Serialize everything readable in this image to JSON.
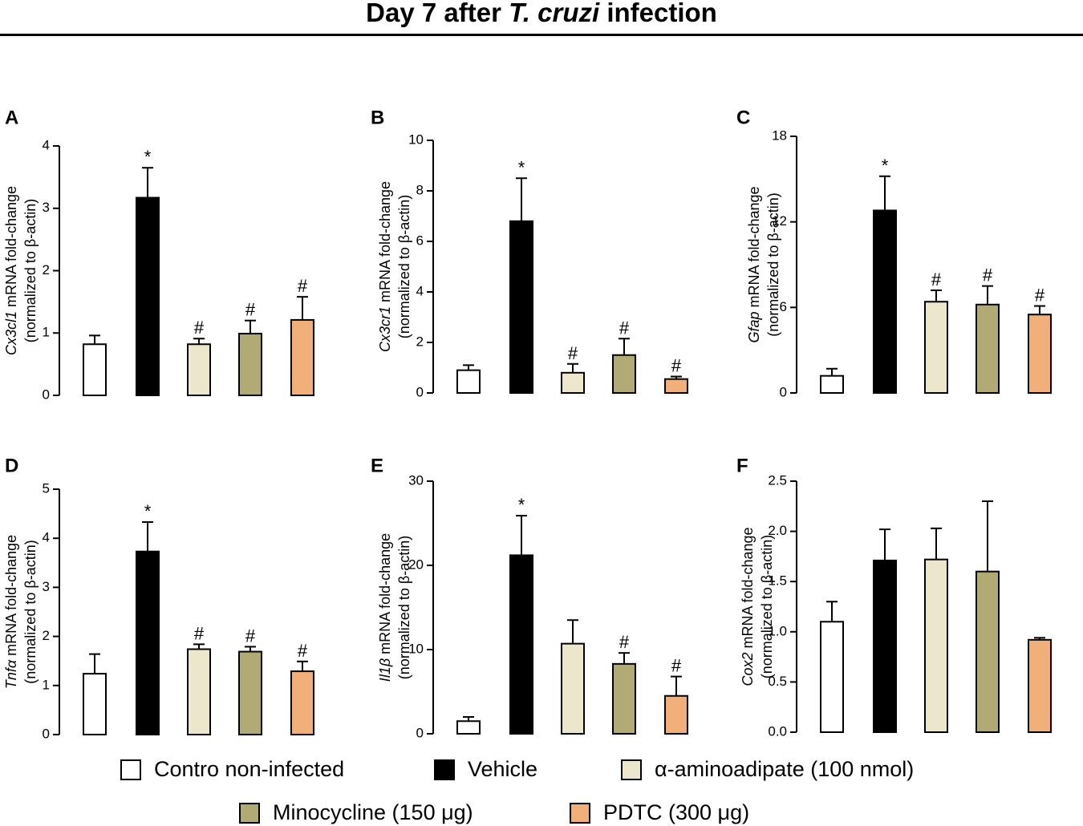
{
  "header": {
    "title_pre": "Day 7 after ",
    "title_italic": "T. cruzi",
    "title_post": " infection"
  },
  "colors": {
    "control": "#ffffff",
    "vehicle": "#000000",
    "aminoadipate": "#ece6cd",
    "minocycline": "#b2aa74",
    "pdtc": "#f1b07a"
  },
  "legend": [
    {
      "key": "control",
      "label": "Contro non-infected"
    },
    {
      "key": "vehicle",
      "label": "Vehicle"
    },
    {
      "key": "aminoadipate",
      "label": "α-aminoadipate (100 nmol)"
    },
    {
      "key": "minocycline",
      "label": "Minocycline (150 μg)"
    },
    {
      "key": "pdtc",
      "label": "PDTC  (300 μg)"
    }
  ],
  "chart_data": [
    {
      "panel": "A",
      "type": "bar",
      "gene": "Cx3cl1",
      "ylabel_rest": " mRNA fold-change",
      "ylabel_line2": "(normalized to β-actin)",
      "categories": [
        "Contro non-infected",
        "Vehicle",
        "α-aminoadipate (100 nmol)",
        "Minocycline (150 μg)",
        "PDTC  (300 μg)"
      ],
      "values": [
        0.82,
        3.17,
        0.82,
        0.99,
        1.21
      ],
      "errors": [
        0.14,
        0.48,
        0.09,
        0.21,
        0.37
      ],
      "marks": [
        "",
        "*",
        "#",
        "#",
        "#"
      ],
      "ylim": [
        0,
        4
      ],
      "yticks": [
        "0",
        "1",
        "2",
        "3",
        "4"
      ]
    },
    {
      "panel": "B",
      "type": "bar",
      "gene": "Cx3cr1",
      "ylabel_rest": " mRNA fold-change",
      "ylabel_line2": "(normalized to β-actin)",
      "categories": [
        "Contro non-infected",
        "Vehicle",
        "α-aminoadipate (100 nmol)",
        "Minocycline (150 μg)",
        "PDTC  (300 μg)"
      ],
      "values": [
        0.9,
        6.8,
        0.8,
        1.5,
        0.55
      ],
      "errors": [
        0.2,
        1.7,
        0.35,
        0.65,
        0.1
      ],
      "marks": [
        "",
        "*",
        "#",
        "#",
        "#"
      ],
      "ylim": [
        0,
        10
      ],
      "yticks": [
        "0",
        "2",
        "4",
        "6",
        "8",
        "10"
      ]
    },
    {
      "panel": "C",
      "type": "bar",
      "gene": "Gfap",
      "ylabel_rest": " mRNA fold-change",
      "ylabel_line2": "(normalized to β-actin)",
      "categories": [
        "Contro non-infected",
        "Vehicle",
        "α-aminoadipate (100 nmol)",
        "Minocycline (150 μg)",
        "PDTC  (300 μg)"
      ],
      "values": [
        1.2,
        12.8,
        6.4,
        6.2,
        5.5
      ],
      "errors": [
        0.5,
        2.4,
        0.8,
        1.3,
        0.6
      ],
      "marks": [
        "",
        "*",
        "#",
        "#",
        "#"
      ],
      "ylim": [
        0,
        18
      ],
      "yticks": [
        "0",
        "6",
        "12",
        "18"
      ]
    },
    {
      "panel": "D",
      "type": "bar",
      "gene": "Tnfα",
      "ylabel_rest": " mRNA fold-change",
      "ylabel_line2": "(normalized to β-actin)",
      "categories": [
        "Contro non-infected",
        "Vehicle",
        "α-aminoadipate (100 nmol)",
        "Minocycline (150 μg)",
        "PDTC  (300 μg)"
      ],
      "values": [
        1.24,
        3.73,
        1.74,
        1.69,
        1.29
      ],
      "errors": [
        0.4,
        0.6,
        0.1,
        0.1,
        0.2
      ],
      "marks": [
        "",
        "*",
        "#",
        "#",
        "#"
      ],
      "ylim": [
        0,
        5
      ],
      "yticks": [
        "0",
        "1",
        "2",
        "3",
        "4",
        "5"
      ]
    },
    {
      "panel": "E",
      "type": "bar",
      "gene": "Il1β",
      "ylabel_rest": " mRNA fold-change",
      "ylabel_line2": "(normalized to β-actin)",
      "categories": [
        "Contro non-infected",
        "Vehicle",
        "α-aminoadipate (100 nmol)",
        "Minocycline (150 μg)",
        "PDTC  (300 μg)"
      ],
      "values": [
        1.5,
        21.2,
        10.7,
        8.3,
        4.5
      ],
      "errors": [
        0.5,
        4.7,
        2.8,
        1.3,
        2.3
      ],
      "marks": [
        "",
        "*",
        "",
        "#",
        "#"
      ],
      "ylim": [
        0,
        30
      ],
      "yticks": [
        "0",
        "10",
        "20",
        "30"
      ]
    },
    {
      "panel": "F",
      "type": "bar",
      "gene": "Cox2",
      "ylabel_rest": " mRNA fold-change",
      "ylabel_line2": "(normalized to β-actin)",
      "categories": [
        "Contro non-infected",
        "Vehicle",
        "α-aminoadipate (100 nmol)",
        "Minocycline (150 μg)",
        "PDTC  (300 μg)"
      ],
      "values": [
        1.1,
        1.71,
        1.72,
        1.6,
        0.92
      ],
      "errors": [
        0.2,
        0.31,
        0.31,
        0.7,
        0.02
      ],
      "marks": [
        "",
        "",
        "",
        "",
        ""
      ],
      "ylim": [
        0,
        2.5
      ],
      "yticks": [
        "0.0",
        "0.5",
        "1.0",
        "1.5",
        "2.0",
        "2.5"
      ]
    }
  ]
}
